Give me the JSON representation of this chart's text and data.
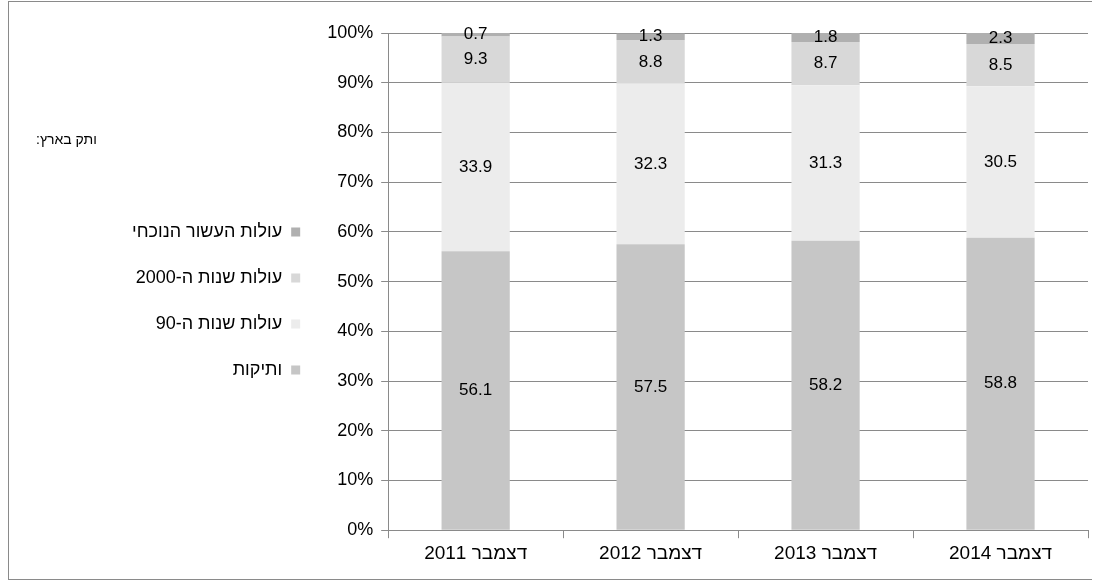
{
  "chart_data": {
    "type": "bar",
    "stacked": true,
    "categories": [
      "דצמבר 2011",
      "דצמבר 2012",
      "דצמבר 2013",
      "דצמבר 2014"
    ],
    "series": [
      {
        "name": "ותיקות",
        "color": "#c6c6c6",
        "values": [
          56.1,
          57.5,
          58.2,
          58.8
        ]
      },
      {
        "name": "עולות שנות ה-90",
        "color": "#ececec",
        "values": [
          33.9,
          32.3,
          31.3,
          30.5
        ]
      },
      {
        "name": "עולות שנות ה-2000",
        "color": "#d8d8d8",
        "values": [
          9.3,
          8.8,
          8.7,
          8.5
        ]
      },
      {
        "name": "עולות העשור הנוכחי",
        "color": "#b0b0b0",
        "values": [
          0.7,
          1.3,
          1.8,
          2.3
        ]
      }
    ],
    "ylim": [
      0,
      100
    ],
    "yticks": [
      {
        "value": 0,
        "label": "0%"
      },
      {
        "value": 10,
        "label": "10%"
      },
      {
        "value": 20,
        "label": "20%"
      },
      {
        "value": 30,
        "label": "30%"
      },
      {
        "value": 40,
        "label": "40%"
      },
      {
        "value": 50,
        "label": "50%"
      },
      {
        "value": 60,
        "label": "60%"
      },
      {
        "value": 70,
        "label": "70%"
      },
      {
        "value": 80,
        "label": "80%"
      },
      {
        "value": 90,
        "label": "90%"
      },
      {
        "value": 100,
        "label": "100%"
      }
    ],
    "grid": "y",
    "legend": "left",
    "legend_title": "ותק בארץ:",
    "data_labels": true
  }
}
